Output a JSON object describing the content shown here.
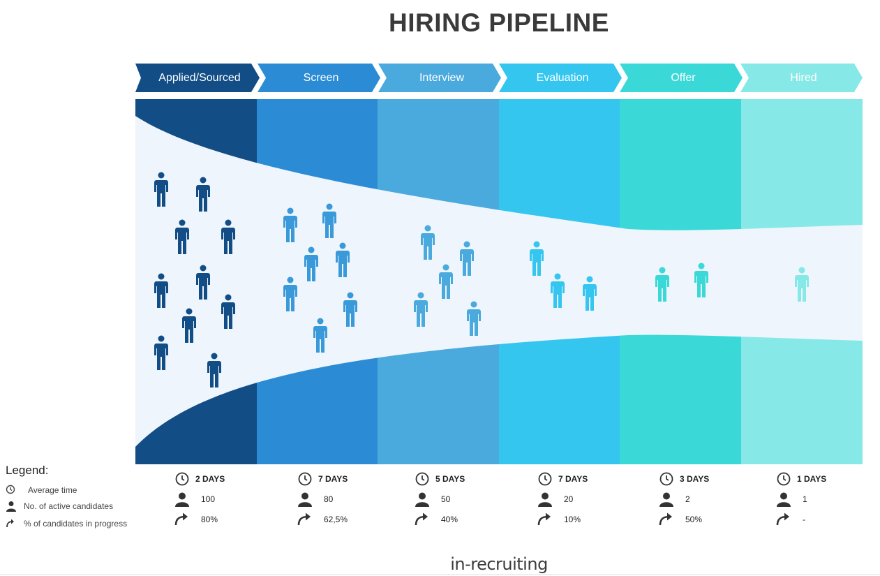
{
  "title": "HIRING PIPELINE",
  "stages": [
    {
      "label": "Applied/Sourced",
      "color": "#134d86",
      "time": "2 DAYS",
      "active": "100",
      "progress": "80%",
      "figure_color": "#134d86"
    },
    {
      "label": "Screen",
      "color": "#2b8cd5",
      "time": "7 DAYS",
      "active": "80",
      "progress": "62,5%",
      "figure_color": "#3a9ad9"
    },
    {
      "label": "Interview",
      "color": "#4aa9dd",
      "time": "5 DAYS",
      "active": "50",
      "progress": "40%",
      "figure_color": "#4aa9dd"
    },
    {
      "label": "Evaluation",
      "color": "#35c6ef",
      "time": "7 DAYS",
      "active": "20",
      "progress": "10%",
      "figure_color": "#35c6ef"
    },
    {
      "label": "Offer",
      "color": "#3ad9d8",
      "time": "3 DAYS",
      "active": "2",
      "progress": "50%",
      "figure_color": "#3ad9d8"
    },
    {
      "label": "Hired",
      "color": "#86e9e7",
      "time": "1 DAYS",
      "active": "1",
      "progress": "-",
      "figure_color": "#86e9e7"
    }
  ],
  "legend": {
    "title": "Legend:",
    "items": [
      {
        "icon": "clock-icon",
        "text": "Average time"
      },
      {
        "icon": "person-icon",
        "text": "No. of active candidates"
      },
      {
        "icon": "share-arrow-icon",
        "text": "% of candidates in progress"
      }
    ]
  },
  "logo_text": "in-recruiting",
  "colors": {
    "funnel_interior": "#eef5fc",
    "text_dark": "#333333"
  }
}
